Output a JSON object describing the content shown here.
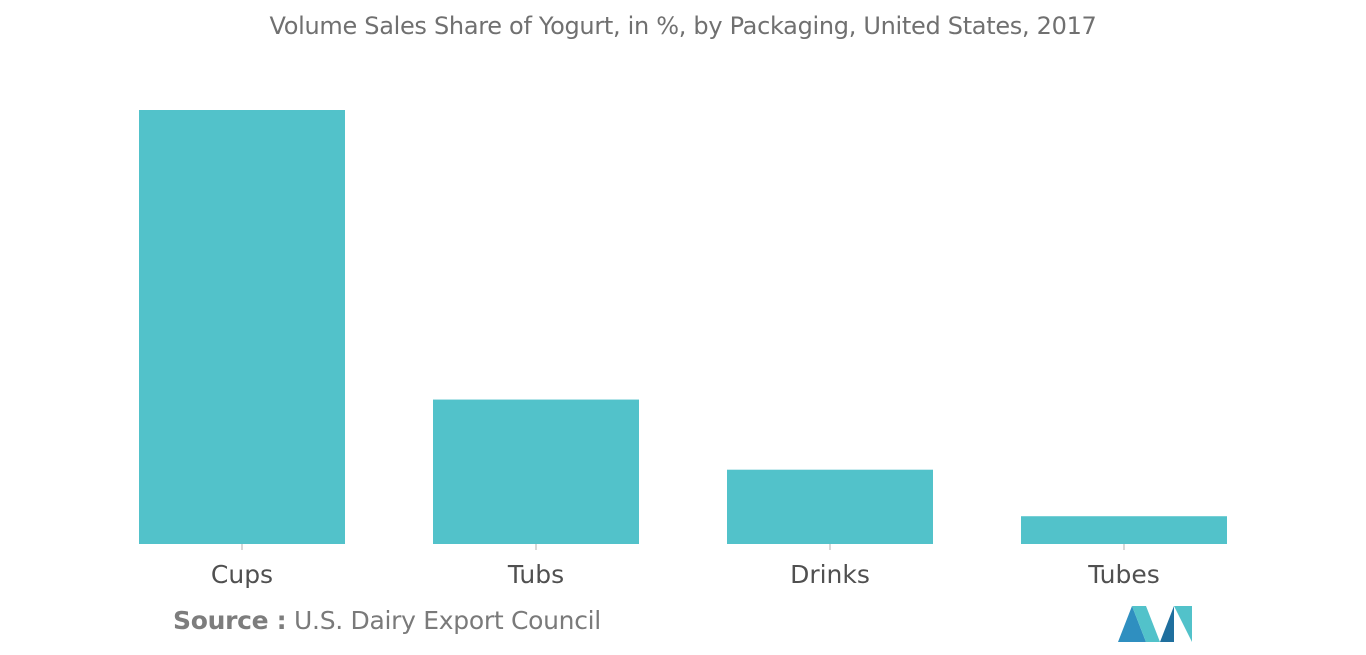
{
  "chart_data": {
    "type": "bar",
    "title": "Volume Sales Share of Yogurt, in %, by Packaging, United States, 2017",
    "categories": [
      "Cups",
      "Tubs",
      "Drinks",
      "Tubes"
    ],
    "values": [
      62.5,
      20.8,
      10.7,
      4.0
    ],
    "xlabel": "",
    "ylabel": "",
    "ylim": [
      0,
      62.5
    ],
    "grid": false,
    "legend": "none",
    "bar_color": "#52c2ca"
  },
  "source": {
    "prefix": "Source :",
    "text": "U.S. Dairy Export Council"
  },
  "logo": {
    "icon": "mordor-intelligence-logo-icon",
    "colors": [
      "#2f8fc0",
      "#52c2ca",
      "#1f6f9e"
    ]
  }
}
